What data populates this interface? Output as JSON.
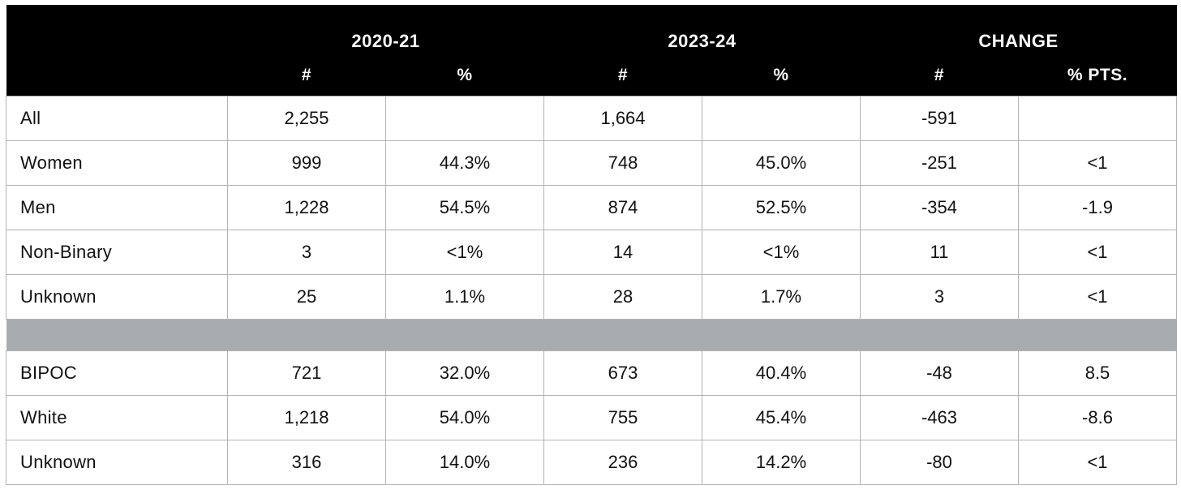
{
  "header": {
    "groups": [
      "2020-21",
      "2023-24",
      "CHANGE"
    ],
    "subheaders": [
      "#",
      "%",
      "#",
      "%",
      "#",
      "% PTS."
    ]
  },
  "gender_rows": [
    {
      "label": "All",
      "n1": "2,255",
      "p1": "",
      "n2": "1,664",
      "p2": "",
      "cn": "-591",
      "cp": ""
    },
    {
      "label": "Women",
      "n1": "999",
      "p1": "44.3%",
      "n2": "748",
      "p2": "45.0%",
      "cn": "-251",
      "cp": "<1"
    },
    {
      "label": "Men",
      "n1": "1,228",
      "p1": "54.5%",
      "n2": "874",
      "p2": "52.5%",
      "cn": "-354",
      "cp": "-1.9"
    },
    {
      "label": "Non-Binary",
      "n1": "3",
      "p1": "<1%",
      "n2": "14",
      "p2": "<1%",
      "cn": "11",
      "cp": "<1"
    },
    {
      "label": "Unknown",
      "n1": "25",
      "p1": "1.1%",
      "n2": "28",
      "p2": "1.7%",
      "cn": "3",
      "cp": "<1"
    }
  ],
  "race_rows": [
    {
      "label": "BIPOC",
      "n1": "721",
      "p1": "32.0%",
      "n2": "673",
      "p2": "40.4%",
      "cn": "-48",
      "cp": "8.5"
    },
    {
      "label": "White",
      "n1": "1,218",
      "p1": "54.0%",
      "n2": "755",
      "p2": "45.4%",
      "cn": "-463",
      "cp": "-8.6"
    },
    {
      "label": "Unknown",
      "n1": "316",
      "p1": "14.0%",
      "n2": "236",
      "p2": "14.2%",
      "cn": "-80",
      "cp": "<1"
    }
  ]
}
